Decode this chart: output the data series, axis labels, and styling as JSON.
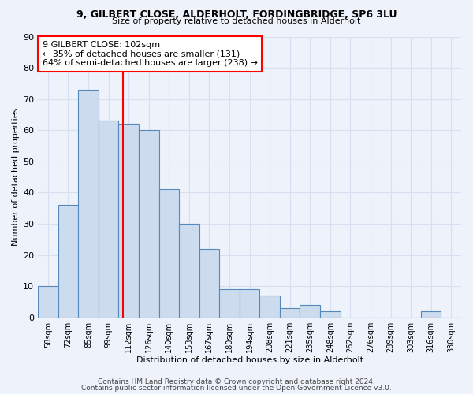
{
  "title1": "9, GILBERT CLOSE, ALDERHOLT, FORDINGBRIDGE, SP6 3LU",
  "title2": "Size of property relative to detached houses in Alderholt",
  "xlabel": "Distribution of detached houses by size in Alderholt",
  "ylabel": "Number of detached properties",
  "bin_labels": [
    "58sqm",
    "72sqm",
    "85sqm",
    "99sqm",
    "112sqm",
    "126sqm",
    "140sqm",
    "153sqm",
    "167sqm",
    "180sqm",
    "194sqm",
    "208sqm",
    "221sqm",
    "235sqm",
    "248sqm",
    "262sqm",
    "276sqm",
    "289sqm",
    "303sqm",
    "316sqm",
    "330sqm"
  ],
  "values": [
    10,
    36,
    73,
    63,
    62,
    60,
    41,
    30,
    22,
    9,
    9,
    7,
    3,
    4,
    2,
    0,
    0,
    0,
    0,
    2,
    0
  ],
  "bar_color": "#ccdcee",
  "bar_edge_color": "#5588bb",
  "red_line_x": 3.72,
  "annotation_text": "9 GILBERT CLOSE: 102sqm\n← 35% of detached houses are smaller (131)\n64% of semi-detached houses are larger (238) →",
  "annotation_box_color": "white",
  "annotation_box_edge_color": "red",
  "ylim": [
    0,
    90
  ],
  "yticks": [
    0,
    10,
    20,
    30,
    40,
    50,
    60,
    70,
    80,
    90
  ],
  "footer1": "Contains HM Land Registry data © Crown copyright and database right 2024.",
  "footer2": "Contains public sector information licensed under the Open Government Licence v3.0.",
  "background_color": "#eef2fa",
  "grid_color": "#d8dff0"
}
